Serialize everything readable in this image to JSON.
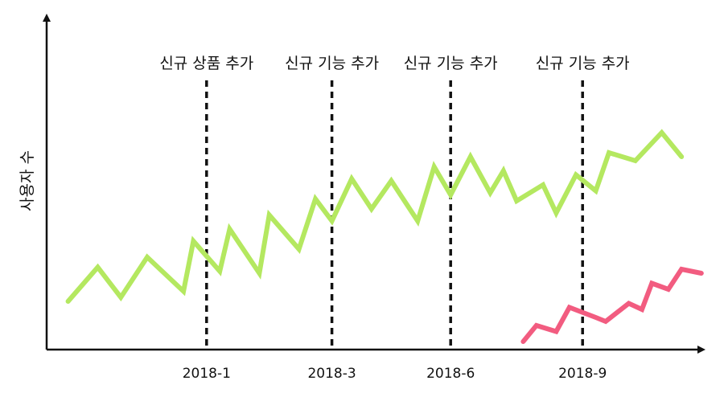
{
  "chart_data": {
    "type": "line",
    "title": "",
    "xlabel": "",
    "ylabel": "사용자 수",
    "grid": false,
    "legend": "none",
    "x_ticks": [
      "2018-1",
      "2018-3",
      "2018-6",
      "2018-9"
    ],
    "xlim": [
      0,
      100
    ],
    "ylim": [
      0,
      100
    ],
    "annotations": [
      {
        "x": 24,
        "label": "신규 상품 추가"
      },
      {
        "x": 43,
        "label": "신규 기능 추가"
      },
      {
        "x": 61,
        "label": "신규 기능 추가"
      },
      {
        "x": 81,
        "label": "신규 기능 추가"
      }
    ],
    "series": [
      {
        "color": "#b4e860",
        "x": [
          3,
          7.5,
          11,
          15,
          20.5,
          22,
          26,
          27.5,
          32,
          33.5,
          38,
          40.5,
          43,
          46,
          49,
          52,
          56,
          58.5,
          61,
          64,
          67,
          69,
          71,
          75,
          77,
          80,
          83,
          85,
          89,
          93,
          96
        ],
        "y": [
          24,
          41,
          26,
          46,
          29,
          54,
          39,
          60,
          38,
          67,
          50,
          75,
          64,
          85,
          70,
          84,
          64,
          91,
          77,
          96,
          78,
          89,
          74,
          82,
          68,
          87,
          79,
          98,
          94,
          108,
          96
        ]
      },
      {
        "color": "#f25c80",
        "x": [
          72,
          74,
          77,
          79,
          83,
          84.5,
          88,
          90,
          91.5,
          94,
          96,
          99
        ],
        "y": [
          4,
          12,
          9,
          21,
          16,
          14,
          23,
          20,
          33,
          30,
          40,
          38
        ]
      }
    ]
  }
}
